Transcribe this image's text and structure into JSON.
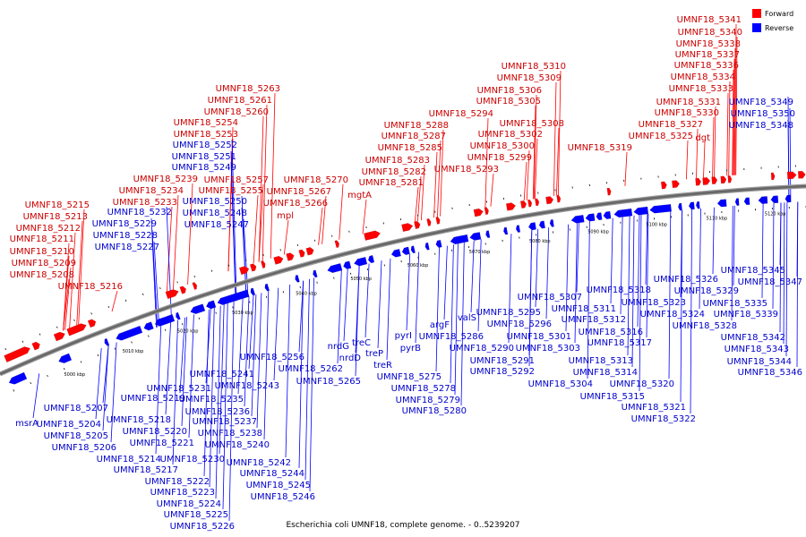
{
  "caption": "Escherichia coli UMNF18, complete genome. - 0..5239207",
  "legend": [
    {
      "label": "Forward",
      "color": "#ff0000"
    },
    {
      "label": "Reverse",
      "color": "#0000ff"
    }
  ],
  "colors": {
    "forward": "#ff0000",
    "reverse": "#0000ff",
    "forward_text": "#cc0000",
    "reverse_text": "#0000cc",
    "backbone": "#666666"
  },
  "axis_ticks": [
    "5000 kbp",
    "5010 kbp",
    "5020 kbp",
    "5030 kbp",
    "5040 kbp",
    "5050 kbp",
    "5060 kbp",
    "5070 kbp",
    "5080 kbp",
    "5090 kbp",
    "5100 kbp",
    "5110 kbp",
    "5120 kbp"
  ],
  "forward_labels": [
    "UMNF18_5215",
    "UMNF18_5213",
    "UMNF18_5212",
    "UMNF18_5211",
    "UMNF18_5210",
    "UMNF18_5209",
    "UMNF18_5208",
    "UMNF18_5216",
    "UMNF18_5239",
    "UMNF18_5234",
    "UMNF18_5233",
    "UMNF18_5263",
    "UMNF18_5261",
    "UMNF18_5260",
    "UMNF18_5254",
    "UMNF18_5253",
    "UMNF18_5257",
    "UMNF18_5255",
    "UMNF18_5270",
    "UMNF18_5267",
    "UMNF18_5266",
    "mpl",
    "mgtA",
    "UMNF18_5288",
    "UMNF18_5287",
    "UMNF18_5285",
    "UMNF18_5283",
    "UMNF18_5282",
    "UMNF18_5281",
    "UMNF18_5294",
    "UMNF18_5293",
    "UMNF18_5310",
    "UMNF18_5309",
    "UMNF18_5306",
    "UMNF18_5305",
    "UMNF18_5308",
    "UMNF18_5302",
    "UMNF18_5300",
    "UMNF18_5299",
    "UMNF18_5319",
    "UMNF18_5341",
    "UMNF18_5340",
    "UMNF18_5338",
    "UMNF18_5337",
    "UMNF18_5336",
    "UMNF18_5334",
    "UMNF18_5333",
    "UMNF18_5331",
    "UMNF18_5330",
    "UMNF18_5327",
    "UMNF18_5325",
    "dgt"
  ],
  "reverse_labels": [
    "UMNF18_5232",
    "UMNF18_5229",
    "UMNF18_5228",
    "UMNF18_5227",
    "UMNF18_5252",
    "UMNF18_5251",
    "UMNF18_5249",
    "UMNF18_5250",
    "UMNF18_5248",
    "UMNF18_5247",
    "UMNF18_5349",
    "UMNF18_5350",
    "UMNF18_5348",
    "msrA",
    "UMNF18_5207",
    "UMNF18_5204",
    "UMNF18_5205",
    "UMNF18_5206",
    "UMNF18_5219",
    "UMNF18_5218",
    "UMNF18_5220",
    "UMNF18_5221",
    "UMNF18_5214",
    "UMNF18_5230",
    "UMNF18_5217",
    "UMNF18_5222",
    "UMNF18_5223",
    "UMNF18_5224",
    "UMNF18_5225",
    "UMNF18_5226",
    "UMNF18_5231",
    "UMNF18_5241",
    "UMNF18_5235",
    "UMNF18_5236",
    "UMNF18_5237",
    "UMNF18_5238",
    "UMNF18_5240",
    "UMNF18_5243",
    "UMNF18_5242",
    "UMNF18_5244",
    "UMNF18_5245",
    "UMNF18_5246",
    "UMNF18_5256",
    "UMNF18_5262",
    "UMNF18_5265",
    "nrdG",
    "nrdD",
    "treC",
    "treP",
    "treR",
    "pyrI",
    "pyrB",
    "UMNF18_5275",
    "UMNF18_5278",
    "UMNF18_5279",
    "UMNF18_5280",
    "argF",
    "valS",
    "UMNF18_5286",
    "UMNF18_5290",
    "UMNF18_5291",
    "UMNF18_5292",
    "UMNF18_5295",
    "UMNF18_5296",
    "UMNF18_5307",
    "UMNF18_5301",
    "UMNF18_5303",
    "UMNF18_5304",
    "UMNF18_5311",
    "UMNF18_5312",
    "UMNF18_5318",
    "UMNF18_5316",
    "UMNF18_5317",
    "UMNF18_5313",
    "UMNF18_5314",
    "UMNF18_5315",
    "UMNF18_5320",
    "UMNF18_5321",
    "UMNF18_5322",
    "UMNF18_5323",
    "UMNF18_5324",
    "UMNF18_5326",
    "UMNF18_5329",
    "UMNF18_5328",
    "UMNF18_5335",
    "UMNF18_5339",
    "UMNF18_5345",
    "UMNF18_5347",
    "UMNF18_5342",
    "UMNF18_5343",
    "UMNF18_5344",
    "UMNF18_5346"
  ]
}
